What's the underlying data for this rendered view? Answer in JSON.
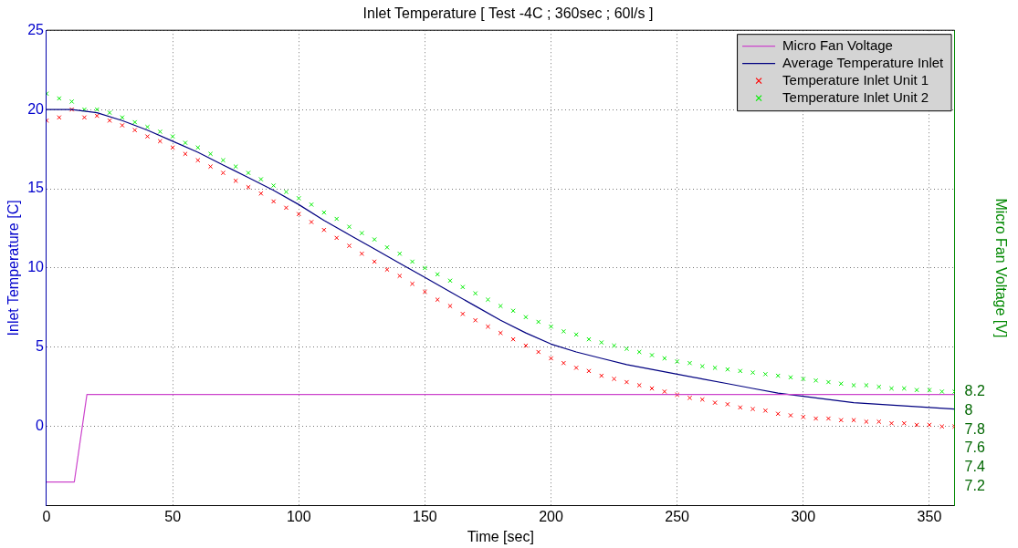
{
  "chart_data": {
    "type": "scatter",
    "title": "Inlet Temperature [ Test -4C ; 360sec ; 60l/s ]",
    "xlabel": "Time [sec]",
    "ylabel": "Inlet Temperature [C]",
    "y2label": "Micro Fan Voltage [V]",
    "xlim": [
      0,
      360
    ],
    "xticks": [
      0,
      50,
      100,
      150,
      200,
      250,
      300,
      350
    ],
    "ylim": [
      -5,
      25
    ],
    "yticks": [
      0,
      5,
      10,
      15,
      20,
      25
    ],
    "y2lim": [
      7,
      12
    ],
    "y2ticks": [
      7.2,
      7.4,
      7.6,
      7.8,
      8,
      8.2
    ],
    "grid": true,
    "legend": "top right",
    "series": [
      {
        "name": "Micro Fan Voltage",
        "type": "line",
        "axis": "y2",
        "color": "#cc44cc",
        "marker": "none",
        "x": [
          0,
          11,
          16,
          360
        ],
        "values": [
          7.25,
          7.25,
          8.17,
          8.17
        ]
      },
      {
        "name": "Average Temperature Inlet",
        "type": "line",
        "color": "#000080",
        "marker": "none",
        "x": [
          0,
          10,
          20,
          30,
          40,
          50,
          60,
          70,
          80,
          90,
          100,
          110,
          120,
          130,
          140,
          150,
          160,
          170,
          180,
          190,
          200,
          210,
          220,
          230,
          240,
          250,
          260,
          270,
          280,
          290,
          300,
          310,
          320,
          330,
          340,
          350,
          360
        ],
        "values": [
          20.0,
          20.0,
          19.8,
          19.3,
          18.7,
          18.0,
          17.3,
          16.5,
          15.7,
          14.9,
          14.0,
          13.0,
          12.1,
          11.2,
          10.3,
          9.4,
          8.5,
          7.6,
          6.7,
          5.9,
          5.2,
          4.7,
          4.3,
          3.9,
          3.6,
          3.3,
          3.0,
          2.7,
          2.4,
          2.1,
          1.9,
          1.7,
          1.5,
          1.4,
          1.3,
          1.2,
          1.1
        ]
      },
      {
        "name": "Temperature Inlet Unit 1",
        "type": "scatter",
        "color": "#ff0000",
        "marker": "cross",
        "x": [
          0,
          5,
          10,
          15,
          20,
          25,
          30,
          35,
          40,
          45,
          50,
          55,
          60,
          65,
          70,
          75,
          80,
          85,
          90,
          95,
          100,
          105,
          110,
          115,
          120,
          125,
          130,
          135,
          140,
          145,
          150,
          155,
          160,
          165,
          170,
          175,
          180,
          185,
          190,
          195,
          200,
          205,
          210,
          215,
          220,
          225,
          230,
          235,
          240,
          245,
          250,
          255,
          260,
          265,
          270,
          275,
          280,
          285,
          290,
          295,
          300,
          305,
          310,
          315,
          320,
          325,
          330,
          335,
          340,
          345,
          350,
          355,
          360
        ],
        "values": [
          19.3,
          19.5,
          20.0,
          19.5,
          19.6,
          19.3,
          19.0,
          18.7,
          18.3,
          18.0,
          17.6,
          17.2,
          16.8,
          16.4,
          16.0,
          15.5,
          15.1,
          14.7,
          14.2,
          13.8,
          13.4,
          12.9,
          12.4,
          11.9,
          11.4,
          10.9,
          10.4,
          9.9,
          9.5,
          9.0,
          8.5,
          8.0,
          7.6,
          7.1,
          6.7,
          6.3,
          5.9,
          5.5,
          5.1,
          4.7,
          4.3,
          4.0,
          3.7,
          3.5,
          3.2,
          3.0,
          2.8,
          2.6,
          2.4,
          2.2,
          2.0,
          1.8,
          1.7,
          1.5,
          1.4,
          1.2,
          1.1,
          1.0,
          0.8,
          0.7,
          0.6,
          0.5,
          0.5,
          0.4,
          0.4,
          0.3,
          0.3,
          0.2,
          0.2,
          0.1,
          0.1,
          0.0,
          0.0
        ]
      },
      {
        "name": "Temperature Inlet Unit 2",
        "type": "scatter",
        "color": "#00ee00",
        "marker": "cross",
        "x": [
          0,
          5,
          10,
          15,
          20,
          25,
          30,
          35,
          40,
          45,
          50,
          55,
          60,
          65,
          70,
          75,
          80,
          85,
          90,
          95,
          100,
          105,
          110,
          115,
          120,
          125,
          130,
          135,
          140,
          145,
          150,
          155,
          160,
          165,
          170,
          175,
          180,
          185,
          190,
          195,
          200,
          205,
          210,
          215,
          220,
          225,
          230,
          235,
          240,
          245,
          250,
          255,
          260,
          265,
          270,
          275,
          280,
          285,
          290,
          295,
          300,
          305,
          310,
          315,
          320,
          325,
          330,
          335,
          340,
          345,
          350,
          355,
          360
        ],
        "values": [
          21.0,
          20.7,
          20.5,
          20.0,
          20.0,
          19.8,
          19.5,
          19.2,
          18.9,
          18.6,
          18.3,
          17.9,
          17.6,
          17.2,
          16.8,
          16.4,
          16.0,
          15.6,
          15.2,
          14.8,
          14.4,
          14.0,
          13.5,
          13.1,
          12.6,
          12.2,
          11.8,
          11.3,
          10.9,
          10.4,
          10.0,
          9.6,
          9.2,
          8.8,
          8.4,
          8.0,
          7.6,
          7.3,
          6.9,
          6.6,
          6.3,
          6.0,
          5.8,
          5.5,
          5.3,
          5.1,
          4.9,
          4.7,
          4.5,
          4.3,
          4.1,
          4.0,
          3.8,
          3.7,
          3.6,
          3.5,
          3.4,
          3.3,
          3.2,
          3.1,
          3.0,
          2.9,
          2.8,
          2.7,
          2.6,
          2.6,
          2.5,
          2.4,
          2.4,
          2.3,
          2.3,
          2.2,
          2.2
        ]
      }
    ]
  }
}
